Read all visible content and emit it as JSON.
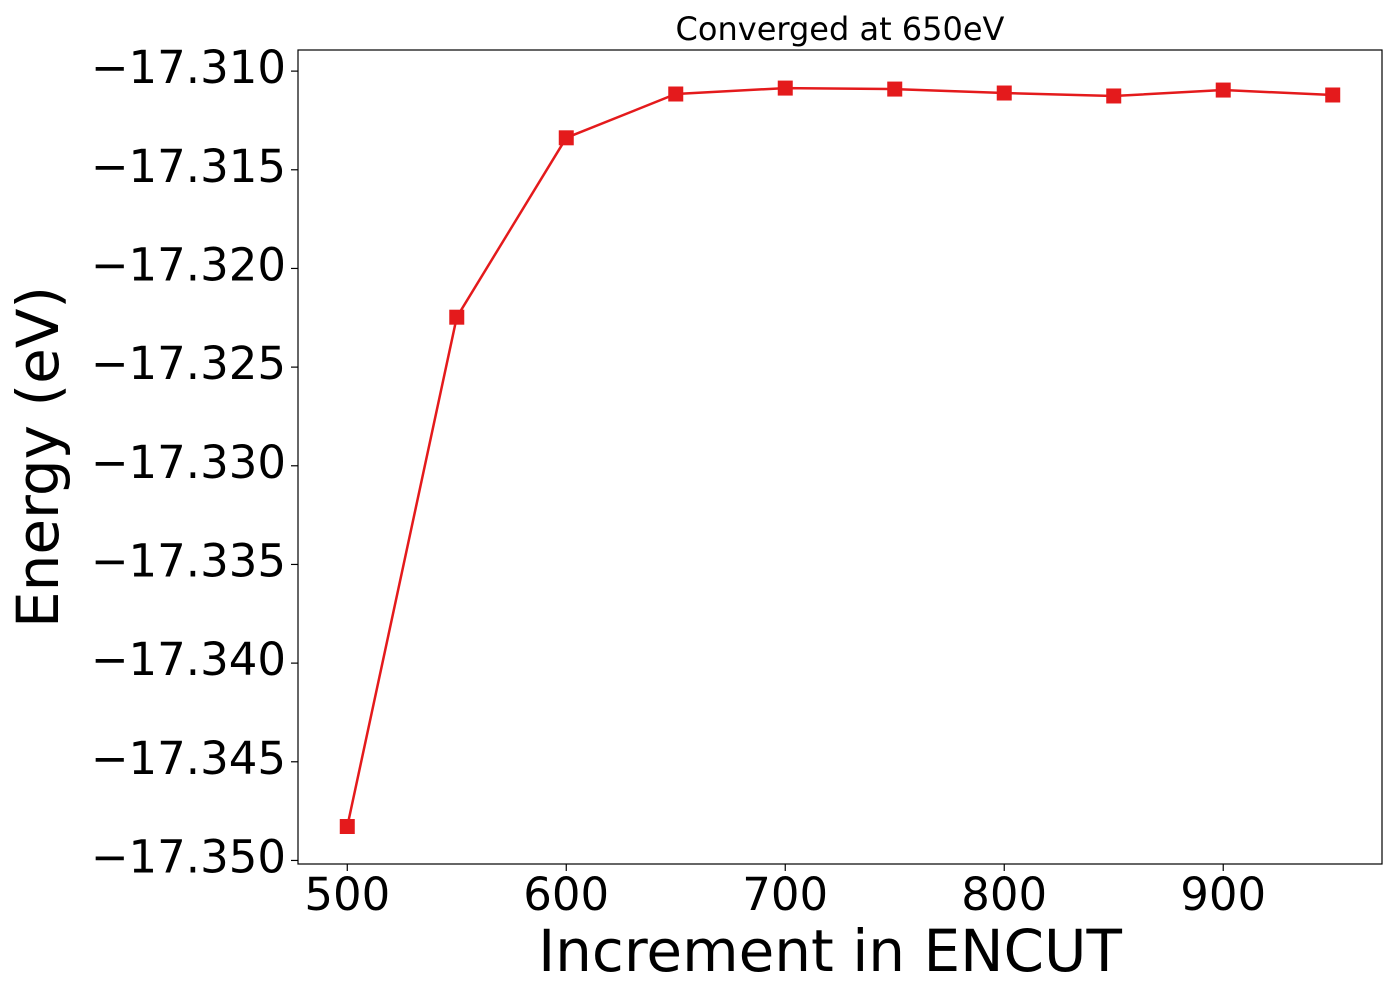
{
  "chart_data": {
    "type": "line",
    "title": "Converged at 650eV",
    "x_label": "Increment in ENCUT",
    "y_label": "Energy (eV)",
    "x": [
      500,
      550,
      600,
      650,
      700,
      750,
      800,
      850,
      900,
      950
    ],
    "series": [
      {
        "name": "Energy",
        "color": "#e41a1c",
        "values": [
          -17.34828,
          -17.32247,
          -17.31338,
          -17.31116,
          -17.31086,
          -17.31091,
          -17.31111,
          -17.31126,
          -17.31096,
          -17.31121
        ]
      }
    ],
    "xlim": [
      477.5,
      972.5
    ],
    "ylim": [
      -17.35018,
      -17.30893
    ],
    "xticks": [
      500,
      600,
      700,
      800,
      900
    ],
    "yticks": [
      {
        "value": -17.35,
        "label": "−17.350"
      },
      {
        "value": -17.345,
        "label": "−17.345"
      },
      {
        "value": -17.34,
        "label": "−17.340"
      },
      {
        "value": -17.335,
        "label": "−17.335"
      },
      {
        "value": -17.33,
        "label": "−17.330"
      },
      {
        "value": -17.325,
        "label": "−17.325"
      },
      {
        "value": -17.32,
        "label": "−17.320"
      },
      {
        "value": -17.315,
        "label": "−17.315"
      },
      {
        "value": -17.31,
        "label": "−17.310"
      }
    ],
    "grid": false
  }
}
